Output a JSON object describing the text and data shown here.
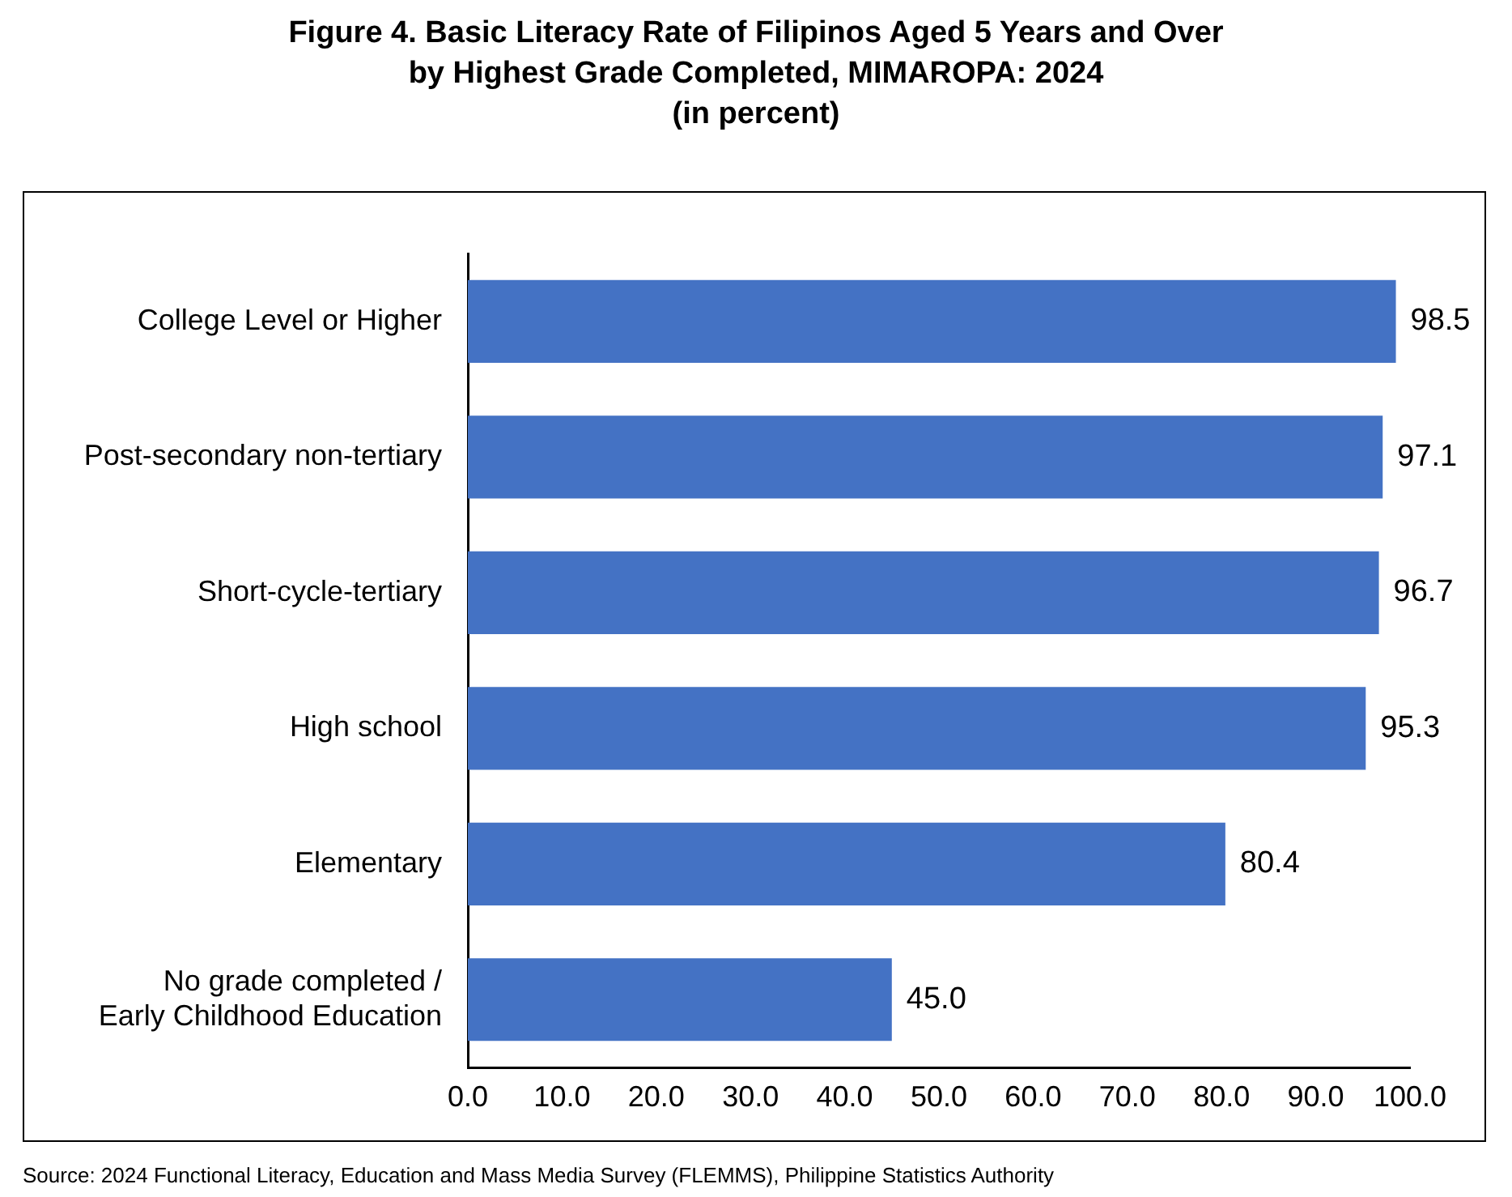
{
  "chart_data": {
    "type": "bar",
    "orientation": "horizontal",
    "title": "Figure 4. Basic Literacy Rate of Filipinos Aged 5 Years and Over\nby Highest Grade Completed, MIMAROPA: 2024\n(in percent)",
    "categories": [
      "College Level or Higher",
      "Post-secondary non-tertiary",
      "Short-cycle-tertiary",
      "High school",
      "Elementary",
      "No grade completed /\nEarly Childhood Education"
    ],
    "values": [
      98.5,
      97.1,
      96.7,
      95.3,
      80.4,
      45.0
    ],
    "value_labels": [
      "98.5",
      "97.1",
      "96.7",
      "95.3",
      "80.4",
      "45.0"
    ],
    "color": "#4472c4",
    "xlim": [
      0,
      100
    ],
    "xticks": [
      {
        "value": 0,
        "label": "0.0"
      },
      {
        "value": 10,
        "label": "10.0"
      },
      {
        "value": 20,
        "label": "20.0"
      },
      {
        "value": 30,
        "label": "30.0"
      },
      {
        "value": 40,
        "label": "40.0"
      },
      {
        "value": 50,
        "label": "50.0"
      },
      {
        "value": 60,
        "label": "60.0"
      },
      {
        "value": 70,
        "label": "70.0"
      },
      {
        "value": 80,
        "label": "80.0"
      },
      {
        "value": 90,
        "label": "90.0"
      },
      {
        "value": 100,
        "label": "100.0"
      }
    ],
    "grid": false,
    "legend": false,
    "annotations": [
      "Source: 2024 Functional Literacy, Education and Mass Media Survey (FLEMMS), Philippine Statistics Authority"
    ]
  }
}
